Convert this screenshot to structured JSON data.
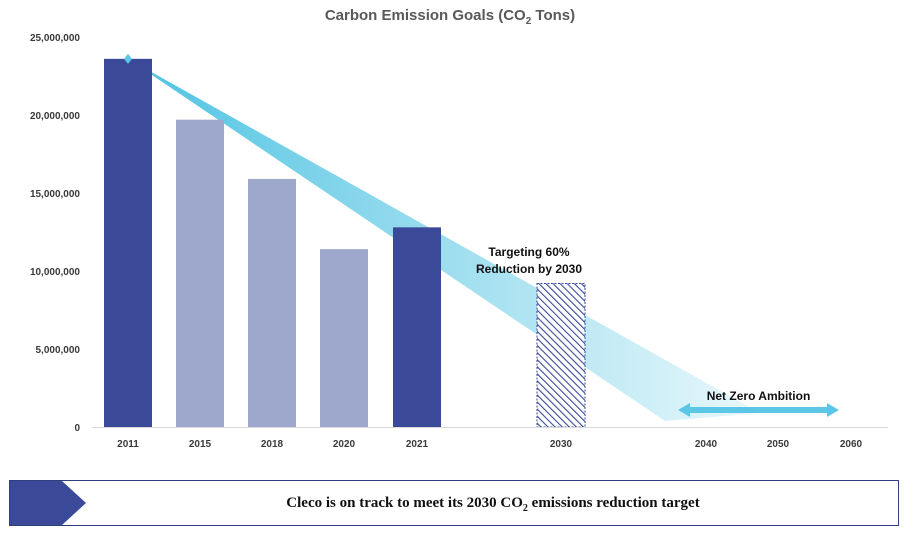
{
  "chart_data": {
    "type": "bar",
    "title": "Carbon Emission Goals (CO",
    "title_subscript": "2",
    "title_suffix": " Tons)",
    "categories": [
      "2011",
      "2015",
      "2018",
      "2020",
      "2021",
      "2030",
      "2040",
      "2050",
      "2060"
    ],
    "bars": [
      {
        "category": "2011",
        "value": 23600000,
        "style": "dark"
      },
      {
        "category": "2015",
        "value": 19700000,
        "style": "light"
      },
      {
        "category": "2018",
        "value": 15900000,
        "style": "light"
      },
      {
        "category": "2020",
        "value": 11400000,
        "style": "light"
      },
      {
        "category": "2021",
        "value": 12800000,
        "style": "dark"
      },
      {
        "category": "2030",
        "value": 9200000,
        "style": "hatched"
      }
    ],
    "ylim": [
      0,
      25000000
    ],
    "yticks": [
      {
        "value": 0,
        "label": "0"
      },
      {
        "value": 5000000,
        "label": "5,000,000"
      },
      {
        "value": 10000000,
        "label": "10,000,000"
      },
      {
        "value": 15000000,
        "label": "15,000,000"
      },
      {
        "value": 20000000,
        "label": "20,000,000"
      },
      {
        "value": 25000000,
        "label": "25,000,000"
      }
    ],
    "trend": {
      "from": {
        "category": "2011",
        "value": 23600000
      },
      "to": {
        "category": "2040",
        "value": 0
      }
    },
    "net_zero_range": {
      "from": "2040",
      "to": "2060"
    },
    "annotations": {
      "target_line1": "Targeting 60%",
      "target_line2": "Reduction by 2030",
      "net_zero": "Net Zero Ambition"
    },
    "colors": {
      "dark": "#3a4a98",
      "light": "#9ea8cc",
      "hatch": "#3a4a98",
      "trend_start": "#4fc3e2",
      "trend_end": "#eaf8fc",
      "arrow": "#5bc6e6"
    },
    "grid": false,
    "legend": "none"
  },
  "banner": {
    "text_before": "Cleco is on track to meet its 2030 CO",
    "text_subscript": "2",
    "text_after": " emissions reduction target",
    "arrow_color": "#3a4a98"
  }
}
